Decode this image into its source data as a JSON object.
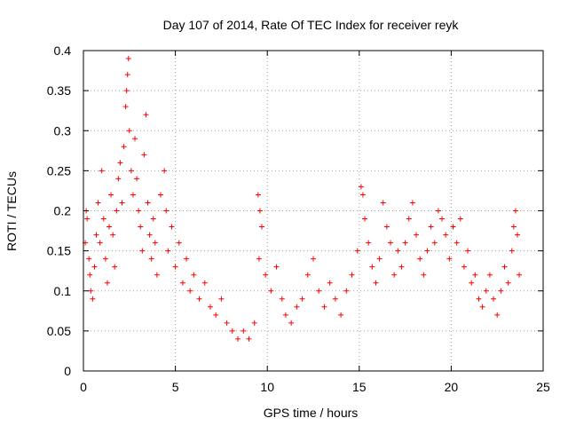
{
  "chart_data": {
    "type": "scatter",
    "title": "Day 107 of 2014, Rate Of TEC Index for receiver reyk",
    "xlabel": "GPS time / hours",
    "ylabel": "ROTI / TECUs",
    "xlim": [
      0,
      25
    ],
    "ylim": [
      0,
      0.4
    ],
    "xticks": [
      0,
      5,
      10,
      15,
      20,
      25
    ],
    "xtick_labels": [
      "0",
      "5",
      "10",
      "15",
      "20",
      "25"
    ],
    "yticks": [
      0,
      0.05,
      0.1,
      0.15,
      0.2,
      0.25,
      0.3,
      0.35,
      0.4
    ],
    "ytick_labels": [
      "0",
      "0.05",
      "0.1",
      "0.15",
      "0.2",
      "0.25",
      "0.3",
      "0.35",
      "0.4"
    ],
    "grid": true,
    "marker": "+",
    "color": "#ff0000",
    "series": [
      {
        "points": [
          [
            0.1,
            0.16
          ],
          [
            0.15,
            0.2
          ],
          [
            0.2,
            0.19
          ],
          [
            0.3,
            0.14
          ],
          [
            0.35,
            0.12
          ],
          [
            0.4,
            0.1
          ],
          [
            0.5,
            0.09
          ],
          [
            0.6,
            0.13
          ],
          [
            0.7,
            0.17
          ],
          [
            0.8,
            0.21
          ],
          [
            0.9,
            0.16
          ],
          [
            1.0,
            0.25
          ],
          [
            1.1,
            0.19
          ],
          [
            1.2,
            0.14
          ],
          [
            1.3,
            0.11
          ],
          [
            1.4,
            0.18
          ],
          [
            1.5,
            0.22
          ],
          [
            1.6,
            0.17
          ],
          [
            1.7,
            0.13
          ],
          [
            1.8,
            0.2
          ],
          [
            1.9,
            0.24
          ],
          [
            2.0,
            0.26
          ],
          [
            2.1,
            0.21
          ],
          [
            2.2,
            0.28
          ],
          [
            2.3,
            0.33
          ],
          [
            2.35,
            0.35
          ],
          [
            2.4,
            0.37
          ],
          [
            2.45,
            0.39
          ],
          [
            2.5,
            0.3
          ],
          [
            2.6,
            0.25
          ],
          [
            2.7,
            0.22
          ],
          [
            2.8,
            0.29
          ],
          [
            2.9,
            0.24
          ],
          [
            3.0,
            0.2
          ],
          [
            3.1,
            0.18
          ],
          [
            3.2,
            0.15
          ],
          [
            3.3,
            0.27
          ],
          [
            3.4,
            0.32
          ],
          [
            3.5,
            0.21
          ],
          [
            3.6,
            0.17
          ],
          [
            3.7,
            0.14
          ],
          [
            3.8,
            0.19
          ],
          [
            3.9,
            0.16
          ],
          [
            4.0,
            0.12
          ],
          [
            4.2,
            0.22
          ],
          [
            4.4,
            0.25
          ],
          [
            4.5,
            0.2
          ],
          [
            4.6,
            0.15
          ],
          [
            4.8,
            0.18
          ],
          [
            5.0,
            0.13
          ],
          [
            5.2,
            0.16
          ],
          [
            5.4,
            0.11
          ],
          [
            5.6,
            0.14
          ],
          [
            5.8,
            0.1
          ],
          [
            6.0,
            0.12
          ],
          [
            6.3,
            0.09
          ],
          [
            6.6,
            0.11
          ],
          [
            6.9,
            0.08
          ],
          [
            7.2,
            0.07
          ],
          [
            7.5,
            0.09
          ],
          [
            7.8,
            0.06
          ],
          [
            8.1,
            0.05
          ],
          [
            8.4,
            0.04
          ],
          [
            8.7,
            0.05
          ],
          [
            9.0,
            0.04
          ],
          [
            9.3,
            0.06
          ],
          [
            9.5,
            0.22
          ],
          [
            9.6,
            0.2
          ],
          [
            9.7,
            0.18
          ],
          [
            9.55,
            0.14
          ],
          [
            9.9,
            0.12
          ],
          [
            10.2,
            0.1
          ],
          [
            10.5,
            0.13
          ],
          [
            10.8,
            0.09
          ],
          [
            11.0,
            0.07
          ],
          [
            11.3,
            0.06
          ],
          [
            11.6,
            0.08
          ],
          [
            11.9,
            0.09
          ],
          [
            12.2,
            0.12
          ],
          [
            12.5,
            0.14
          ],
          [
            12.8,
            0.1
          ],
          [
            13.1,
            0.08
          ],
          [
            13.4,
            0.11
          ],
          [
            13.7,
            0.09
          ],
          [
            14.0,
            0.07
          ],
          [
            14.3,
            0.1
          ],
          [
            14.6,
            0.12
          ],
          [
            14.9,
            0.15
          ],
          [
            15.1,
            0.23
          ],
          [
            15.2,
            0.22
          ],
          [
            15.3,
            0.19
          ],
          [
            15.5,
            0.16
          ],
          [
            15.7,
            0.13
          ],
          [
            15.9,
            0.11
          ],
          [
            16.1,
            0.14
          ],
          [
            16.3,
            0.21
          ],
          [
            16.5,
            0.18
          ],
          [
            16.7,
            0.16
          ],
          [
            16.9,
            0.12
          ],
          [
            17.1,
            0.15
          ],
          [
            17.3,
            0.13
          ],
          [
            17.5,
            0.16
          ],
          [
            17.7,
            0.19
          ],
          [
            17.9,
            0.21
          ],
          [
            18.1,
            0.17
          ],
          [
            18.3,
            0.14
          ],
          [
            18.5,
            0.12
          ],
          [
            18.7,
            0.15
          ],
          [
            18.9,
            0.18
          ],
          [
            19.1,
            0.16
          ],
          [
            19.3,
            0.2
          ],
          [
            19.5,
            0.19
          ],
          [
            19.7,
            0.17
          ],
          [
            19.9,
            0.14
          ],
          [
            20.1,
            0.18
          ],
          [
            20.3,
            0.16
          ],
          [
            20.5,
            0.19
          ],
          [
            20.7,
            0.13
          ],
          [
            20.9,
            0.15
          ],
          [
            21.1,
            0.11
          ],
          [
            21.3,
            0.12
          ],
          [
            21.5,
            0.09
          ],
          [
            21.7,
            0.08
          ],
          [
            21.9,
            0.1
          ],
          [
            22.1,
            0.12
          ],
          [
            22.3,
            0.09
          ],
          [
            22.5,
            0.07
          ],
          [
            22.7,
            0.1
          ],
          [
            22.9,
            0.13
          ],
          [
            23.1,
            0.11
          ],
          [
            23.3,
            0.15
          ],
          [
            23.4,
            0.18
          ],
          [
            23.5,
            0.2
          ],
          [
            23.6,
            0.17
          ],
          [
            23.7,
            0.12
          ]
        ]
      }
    ]
  }
}
